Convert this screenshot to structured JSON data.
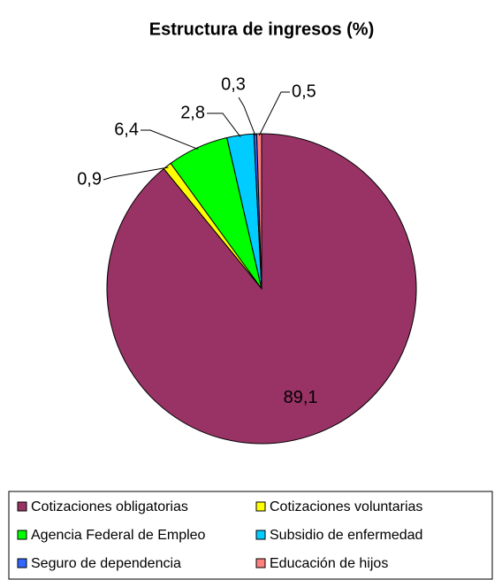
{
  "chart_data": {
    "type": "pie",
    "title": "Estructura de ingresos (%)",
    "categories": [
      "Cotizaciones obligatorias",
      "Cotizaciones voluntarias",
      "Agencia Federal de Empleo",
      "Subsidio de enfermedad",
      "Seguro de dependencia",
      "Educación de hijos"
    ],
    "values": [
      89.1,
      0.9,
      6.4,
      2.8,
      0.3,
      0.5
    ],
    "value_labels": [
      "89,1",
      "0,9",
      "6,4",
      "2,8",
      "0,3",
      "0,5"
    ],
    "colors": [
      "#993366",
      "#ffff00",
      "#00ff00",
      "#00ccff",
      "#3366ff",
      "#ff8080"
    ]
  }
}
